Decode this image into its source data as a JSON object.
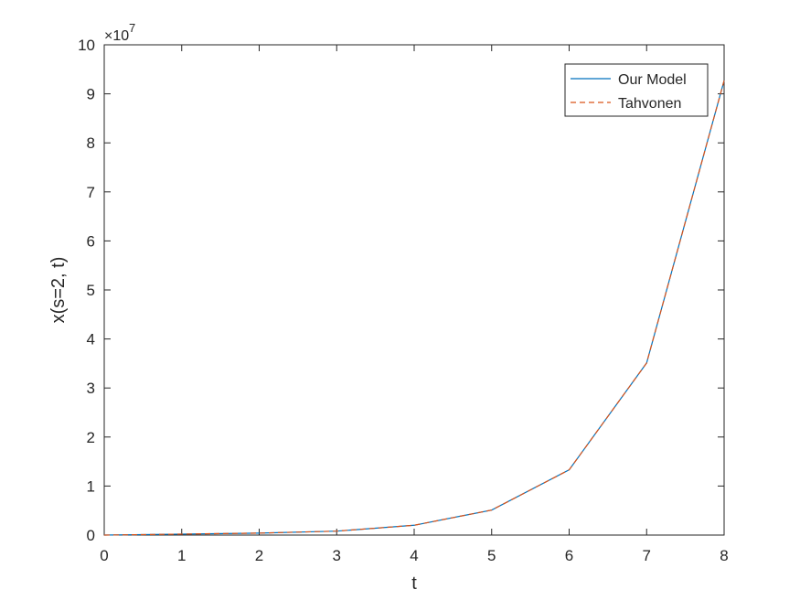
{
  "chart_data": {
    "type": "line",
    "title": "",
    "xlabel": "t",
    "ylabel": "x(s=2, t)",
    "y_exponent_label": "×10",
    "y_exponent_power": "7",
    "y_scale_factor": 10000000,
    "xlim": [
      0,
      8
    ],
    "ylim": [
      0,
      10
    ],
    "x_ticks": [
      "0",
      "1",
      "2",
      "3",
      "4",
      "5",
      "6",
      "7",
      "8"
    ],
    "y_ticks": [
      "0",
      "1",
      "2",
      "3",
      "4",
      "5",
      "6",
      "7",
      "8",
      "9",
      "10"
    ],
    "grid": false,
    "legend_position": "top-right",
    "x": [
      0,
      1,
      2,
      3,
      4,
      5,
      6,
      7,
      8
    ],
    "series": [
      {
        "name": "Our Model",
        "style": "solid",
        "color": "#0072BD",
        "values": [
          0,
          0.02,
          0.04,
          0.08,
          0.2,
          0.51,
          1.33,
          3.51,
          9.27
        ]
      },
      {
        "name": "Tahvonen",
        "style": "dashed",
        "color": "#D95319",
        "values": [
          0,
          0.02,
          0.04,
          0.08,
          0.2,
          0.51,
          1.33,
          3.51,
          9.27
        ]
      }
    ]
  }
}
